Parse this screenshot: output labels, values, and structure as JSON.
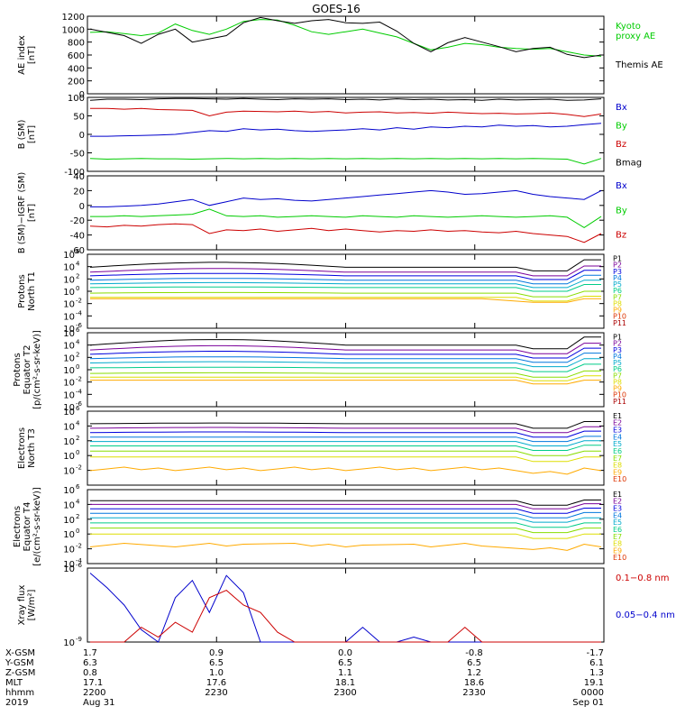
{
  "title": "GOES-16",
  "colors": {
    "black": "#000000",
    "blue": "#0000cc",
    "green": "#00cc00",
    "red": "#cc0000",
    "p": [
      "#000000",
      "#7a0099",
      "#0000dd",
      "#0077dd",
      "#00aacc",
      "#00cc88",
      "#88dd00",
      "#dddd00",
      "#ffaa00",
      "#dd3300",
      "#aa0000"
    ],
    "e": [
      "#000000",
      "#7a0099",
      "#0000dd",
      "#0077dd",
      "#00aacc",
      "#00cc88",
      "#88dd00",
      "#dddd00",
      "#ffaa00",
      "#dd3300",
      "#aa0000"
    ]
  },
  "footer": {
    "row_labels": [
      "X-GSM",
      "Y-GSM",
      "Z-GSM",
      "MLT",
      "hhmm",
      "2019"
    ],
    "columns": [
      {
        "x": "1.7",
        "y": "6.3",
        "z": "0.8",
        "mlt": "17.1",
        "hhmm": "2200",
        "date": "Aug 31"
      },
      {
        "x": "0.9",
        "y": "6.5",
        "z": "1.0",
        "mlt": "17.6",
        "hhmm": "2230",
        "date": ""
      },
      {
        "x": "0.0",
        "y": "6.5",
        "z": "1.1",
        "mlt": "18.1",
        "hhmm": "2300",
        "date": ""
      },
      {
        "x": "-0.8",
        "y": "6.5",
        "z": "1.2",
        "mlt": "18.6",
        "hhmm": "2330",
        "date": ""
      },
      {
        "x": "-1.7",
        "y": "6.1",
        "z": "1.3",
        "mlt": "19.1",
        "hhmm": "0000",
        "date": "Sep 01"
      }
    ]
  },
  "chart_data": [
    {
      "type": "line",
      "ylabel": "AE index\n[nT]",
      "ylim": [
        0,
        1200
      ],
      "yticks": [
        "0",
        "200",
        "400",
        "600",
        "800",
        "1000",
        "1200"
      ],
      "legend": [
        {
          "text": "Kyoto\nproxy AE",
          "color": "#00cc00"
        },
        {
          "text": "Themis AE",
          "color": "#000000"
        }
      ],
      "series": [
        {
          "name": "Kyoto proxy AE",
          "color": "#00cc00",
          "values": [
            950,
            960,
            930,
            900,
            940,
            1080,
            980,
            920,
            1000,
            1120,
            1150,
            1140,
            1060,
            960,
            920,
            960,
            1000,
            940,
            880,
            780,
            680,
            720,
            780,
            760,
            720,
            700,
            690,
            700,
            650,
            600,
            580
          ]
        },
        {
          "name": "Themis AE",
          "color": "#000000",
          "values": [
            1000,
            950,
            900,
            780,
            920,
            1000,
            800,
            850,
            900,
            1100,
            1180,
            1130,
            1090,
            1130,
            1150,
            1100,
            1090,
            1110,
            970,
            780,
            650,
            790,
            870,
            800,
            730,
            650,
            700,
            720,
            610,
            560,
            600
          ]
        }
      ]
    },
    {
      "type": "line",
      "ylabel": "B (SM)\n[nT]",
      "ylim": [
        -100,
        100
      ],
      "yticks": [
        "-100",
        "-50",
        "0",
        "50",
        "100"
      ],
      "legend": [
        {
          "text": "Bx",
          "color": "#0000cc"
        },
        {
          "text": "By",
          "color": "#00cc00"
        },
        {
          "text": "Bz",
          "color": "#cc0000"
        },
        {
          "text": "Bmag",
          "color": "#000000"
        }
      ],
      "series": [
        {
          "name": "Bmag",
          "color": "#000000",
          "values": [
            92,
            95,
            95,
            94,
            96,
            97,
            97,
            96,
            95,
            97,
            95,
            94,
            96,
            95,
            96,
            94,
            95,
            93,
            96,
            94,
            95,
            93,
            94,
            92,
            95,
            93,
            94,
            95,
            92,
            93,
            96
          ]
        },
        {
          "name": "Bz",
          "color": "#cc0000",
          "values": [
            70,
            70,
            68,
            70,
            67,
            66,
            65,
            50,
            60,
            63,
            62,
            61,
            63,
            60,
            62,
            58,
            60,
            61,
            58,
            59,
            57,
            60,
            58,
            56,
            57,
            55,
            56,
            58,
            54,
            48,
            55
          ]
        },
        {
          "name": "Bx",
          "color": "#0000cc",
          "values": [
            -5,
            -5,
            -4,
            -3,
            -2,
            0,
            5,
            10,
            8,
            15,
            12,
            14,
            10,
            8,
            10,
            12,
            15,
            12,
            18,
            14,
            20,
            18,
            22,
            20,
            25,
            22,
            24,
            20,
            22,
            26,
            30
          ]
        },
        {
          "name": "By",
          "color": "#00cc00",
          "values": [
            -65,
            -67,
            -66,
            -65,
            -66,
            -66,
            -67,
            -66,
            -65,
            -66,
            -65,
            -66,
            -65,
            -66,
            -65,
            -66,
            -65,
            -66,
            -65,
            -66,
            -65,
            -66,
            -65,
            -66,
            -65,
            -66,
            -65,
            -66,
            -67,
            -80,
            -65
          ]
        }
      ]
    },
    {
      "type": "line",
      "ylabel": "B (SM)−IGRF (SM)\n[nT]",
      "ylim": [
        -60,
        40
      ],
      "yticks": [
        "-60",
        "-40",
        "-20",
        "0",
        "20",
        "40"
      ],
      "legend": [
        {
          "text": "Bx",
          "color": "#0000cc"
        },
        {
          "text": "By",
          "color": "#00cc00"
        },
        {
          "text": "Bz",
          "color": "#cc0000"
        }
      ],
      "series": [
        {
          "name": "Bx",
          "color": "#0000cc",
          "values": [
            -2,
            -2,
            -1,
            0,
            2,
            5,
            8,
            0,
            5,
            10,
            8,
            9,
            7,
            6,
            8,
            10,
            12,
            14,
            16,
            18,
            20,
            18,
            15,
            16,
            18,
            20,
            15,
            12,
            10,
            8,
            20
          ]
        },
        {
          "name": "By",
          "color": "#00cc00",
          "values": [
            -15,
            -15,
            -14,
            -15,
            -14,
            -13,
            -12,
            -5,
            -14,
            -15,
            -14,
            -16,
            -15,
            -14,
            -15,
            -16,
            -14,
            -15,
            -16,
            -14,
            -15,
            -16,
            -15,
            -14,
            -15,
            -16,
            -15,
            -14,
            -16,
            -30,
            -15
          ]
        },
        {
          "name": "Bz",
          "color": "#cc0000",
          "values": [
            -28,
            -29,
            -27,
            -28,
            -26,
            -25,
            -26,
            -38,
            -33,
            -34,
            -32,
            -35,
            -33,
            -31,
            -34,
            -32,
            -34,
            -36,
            -34,
            -35,
            -33,
            -35,
            -34,
            -36,
            -37,
            -35,
            -38,
            -40,
            -42,
            -50,
            -38
          ]
        }
      ]
    },
    {
      "type": "line",
      "ylabel": "Protons\nNorth T1",
      "yscale": "log",
      "ylim_exp": [
        -6,
        6
      ],
      "yticks_exp": [
        -6,
        -4,
        -2,
        0,
        2,
        4,
        6
      ],
      "legend_cols": "p",
      "legend": [
        {
          "text": "P1"
        },
        {
          "text": "P2"
        },
        {
          "text": "P3"
        },
        {
          "text": "P4"
        },
        {
          "text": "P5"
        },
        {
          "text": "P6"
        },
        {
          "text": "P7"
        },
        {
          "text": "P8"
        },
        {
          "text": "P9"
        },
        {
          "text": "P10"
        },
        {
          "text": "P11"
        }
      ],
      "log_series": [
        {
          "name": "P1",
          "base": 3.9,
          "bump": 0.8,
          "end": 1.2
        },
        {
          "name": "P2",
          "base": 3.1,
          "bump": 0.6,
          "end": 1.0
        },
        {
          "name": "P3",
          "base": 2.5,
          "bump": 0.4,
          "end": 0.9
        },
        {
          "name": "P4",
          "base": 1.8,
          "bump": 0.3,
          "end": 0.8
        },
        {
          "name": "P5",
          "base": 1.2,
          "bump": 0.2,
          "end": 0.6
        },
        {
          "name": "P6",
          "base": 0.6,
          "bump": 0.1,
          "end": 0.5
        },
        {
          "name": "P7",
          "base": -0.3,
          "bump": 0.1,
          "end": 0.3
        },
        {
          "name": "P8",
          "base": -1.0,
          "bump": 0.0,
          "end": 0.2
        },
        {
          "name": "P9",
          "base": -1.2,
          "bump": 0.0,
          "end": 0.0,
          "gap": true
        }
      ]
    },
    {
      "type": "line",
      "ylabel": "Protons\nEquator T2\n[p/(cm²-s-sr-keV)]",
      "yscale": "log",
      "ylim_exp": [
        -6,
        6
      ],
      "yticks_exp": [
        -6,
        -4,
        -2,
        0,
        2,
        4,
        6
      ],
      "legend_cols": "p",
      "legend": [
        {
          "text": "P1"
        },
        {
          "text": "P2"
        },
        {
          "text": "P3"
        },
        {
          "text": "P4"
        },
        {
          "text": "P5"
        },
        {
          "text": "P6"
        },
        {
          "text": "P7"
        },
        {
          "text": "P8"
        },
        {
          "text": "P9"
        },
        {
          "text": "P10"
        },
        {
          "text": "P11"
        }
      ],
      "log_series": [
        {
          "name": "P1",
          "base": 4.0,
          "bump": 0.9,
          "end": 1.3
        },
        {
          "name": "P2",
          "base": 3.2,
          "bump": 0.7,
          "end": 1.1
        },
        {
          "name": "P3",
          "base": 2.5,
          "bump": 0.5,
          "end": 1.0
        },
        {
          "name": "P4",
          "base": 1.8,
          "bump": 0.3,
          "end": 0.9
        },
        {
          "name": "P5",
          "base": 1.1,
          "bump": 0.2,
          "end": 0.7
        },
        {
          "name": "P6",
          "base": 0.3,
          "bump": 0.1,
          "end": 0.6
        },
        {
          "name": "P7",
          "base": -0.6,
          "bump": 0.1,
          "end": 0.4
        },
        {
          "name": "P8",
          "base": -1.2,
          "bump": 0.0,
          "end": 0.2
        },
        {
          "name": "P9",
          "base": -1.7,
          "bump": 0.0,
          "end": 0.0
        }
      ]
    },
    {
      "type": "line",
      "ylabel": "Electrons\nNorth T3",
      "yscale": "log",
      "ylim_exp": [
        -4,
        6
      ],
      "yticks_exp": [
        -2,
        0,
        2,
        4,
        6
      ],
      "legend_cols": "e",
      "legend": [
        {
          "text": "E1"
        },
        {
          "text": "E2"
        },
        {
          "text": "E3"
        },
        {
          "text": "E4"
        },
        {
          "text": "E5"
        },
        {
          "text": "E6"
        },
        {
          "text": "E7"
        },
        {
          "text": "E8"
        },
        {
          "text": "E9"
        },
        {
          "text": "E10"
        }
      ],
      "log_series": [
        {
          "name": "E1",
          "base": 4.3,
          "bump": 0.1,
          "end": 0.3
        },
        {
          "name": "E2",
          "base": 3.7,
          "bump": 0.1,
          "end": 0.2
        },
        {
          "name": "E3",
          "base": 3.1,
          "bump": 0.1,
          "end": 0.2
        },
        {
          "name": "E4",
          "base": 2.5,
          "bump": 0.0,
          "end": 0.1
        },
        {
          "name": "E5",
          "base": 1.9,
          "bump": 0.0,
          "end": 0.1
        },
        {
          "name": "E6",
          "base": 1.3,
          "bump": 0.0,
          "end": 0.1
        },
        {
          "name": "E7",
          "base": 0.6,
          "bump": 0.0,
          "end": 0.0
        },
        {
          "name": "E8",
          "base": -0.2,
          "bump": 0.0,
          "end": 0.0
        },
        {
          "name": "E9",
          "base": -1.8,
          "bump": 0.0,
          "end": 0.0,
          "noisy": true
        }
      ]
    },
    {
      "type": "line",
      "ylabel": "Electrons\nEquator T4\n[e/(cm²-s-sr-keV)]",
      "yscale": "log",
      "ylim_exp": [
        -4,
        6
      ],
      "yticks_exp": [
        -4,
        -2,
        0,
        2,
        4,
        6
      ],
      "legend_cols": "e",
      "legend": [
        {
          "text": "E1"
        },
        {
          "text": "E2"
        },
        {
          "text": "E3"
        },
        {
          "text": "E4"
        },
        {
          "text": "E5"
        },
        {
          "text": "E6"
        },
        {
          "text": "E7"
        },
        {
          "text": "E8"
        },
        {
          "text": "E9"
        },
        {
          "text": "E10"
        }
      ],
      "log_series": [
        {
          "name": "E1",
          "base": 4.5,
          "bump": 0.0,
          "end": 0.1
        },
        {
          "name": "E2",
          "base": 4.0,
          "bump": 0.0,
          "end": 0.1
        },
        {
          "name": "E3",
          "base": 3.4,
          "bump": 0.0,
          "end": 0.1
        },
        {
          "name": "E4",
          "base": 2.8,
          "bump": 0.0,
          "end": 0.1
        },
        {
          "name": "E5",
          "base": 2.2,
          "bump": 0.0,
          "end": 0.0
        },
        {
          "name": "E6",
          "base": 1.5,
          "bump": 0.0,
          "end": 0.0
        },
        {
          "name": "E7",
          "base": 0.8,
          "bump": 0.0,
          "end": 0.0
        },
        {
          "name": "E8",
          "base": 0.0,
          "bump": 0.0,
          "end": 0.0
        },
        {
          "name": "E9",
          "base": -1.5,
          "bump": 0.0,
          "end": 0.0,
          "noisy": true,
          "gap": true
        }
      ]
    },
    {
      "type": "line",
      "ylabel": "Xray flux\n[W/m²]",
      "yscale": "log",
      "ylim_exp": [
        -9,
        -6
      ],
      "yticks_exp": [
        -9,
        -6
      ],
      "legend": [
        {
          "text": "0.1−0.8 nm",
          "color": "#cc0000"
        },
        {
          "text": "0.05−0.4 nm",
          "color": "#0000cc"
        }
      ],
      "series": [
        {
          "name": "0.05−0.4 nm",
          "color": "#0000cc",
          "values": [
            -6.2,
            -6.8,
            -7.5,
            -8.5,
            -9.0,
            -7.2,
            -6.5,
            -7.8,
            -6.3,
            -7.0,
            -9.0,
            -9.0,
            -9.0,
            -9.0,
            -9.0,
            -9.0,
            -8.4,
            -9.0,
            -9.0,
            -8.8,
            -9.0,
            -9.0,
            -9.0,
            -9.0,
            -9.0,
            -9.0,
            -9.0,
            -9.0,
            -9.0,
            -9.0,
            -9.0
          ]
        },
        {
          "name": "0.1−0.8 nm",
          "color": "#cc0000",
          "values": [
            -9.0,
            -9.0,
            -9.0,
            -8.4,
            -8.8,
            -8.2,
            -8.6,
            -7.2,
            -6.9,
            -7.5,
            -7.8,
            -8.6,
            -9.0,
            -9.0,
            -9.0,
            -9.0,
            -9.0,
            -9.0,
            -9.0,
            -9.0,
            -9.0,
            -9.0,
            -8.4,
            -9.0,
            -9.0,
            -9.0,
            -9.0,
            -9.0,
            -9.0,
            -9.0,
            -9.0
          ]
        }
      ]
    }
  ]
}
